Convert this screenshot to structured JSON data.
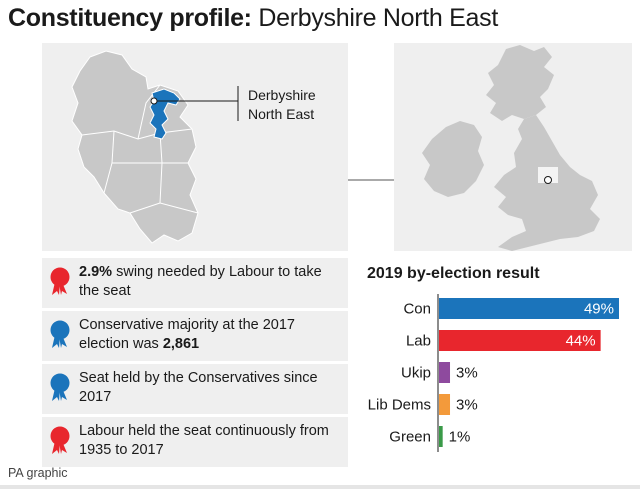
{
  "title": {
    "lead": "Constituency profile:",
    "rest": " Derbyshire North East"
  },
  "callout": {
    "line1": "Derbyshire",
    "line2": "North East"
  },
  "facts": [
    {
      "color": "#e8262d",
      "pre": "",
      "bold": "2.9%",
      "post": " swing needed by Labour to take the seat"
    },
    {
      "color": "#1b74bb",
      "pre": "Conservative majority at the 2017 election was ",
      "bold": "2,861",
      "post": ""
    },
    {
      "color": "#1b74bb",
      "pre": "Seat held by the Conservatives since 2017",
      "bold": "",
      "post": ""
    },
    {
      "color": "#e8262d",
      "pre": "Labour held the seat continuously from 1935 to 2017",
      "bold": "",
      "post": ""
    }
  ],
  "colors": {
    "con": "#1b74bb",
    "lab": "#e8262d",
    "ukip": "#8e4a9e",
    "libdem": "#f39a3b",
    "green": "#3a9a48",
    "panel": "#efefef",
    "land": "#c8c8c8"
  },
  "chart_data": {
    "type": "bar",
    "title": "2019 by-election result",
    "categories": [
      "Con",
      "Lab",
      "Ukip",
      "Lib Dems",
      "Green"
    ],
    "values": [
      49,
      44,
      3,
      3,
      1
    ],
    "labels": [
      "49%",
      "44%",
      "3%",
      "3%",
      "1%"
    ],
    "colors": [
      "#1b74bb",
      "#e8262d",
      "#8e4a9e",
      "#f39a3b",
      "#3a9a48"
    ],
    "orientation": "horizontal",
    "xlim": [
      0,
      49
    ]
  },
  "footer": "PA graphic"
}
